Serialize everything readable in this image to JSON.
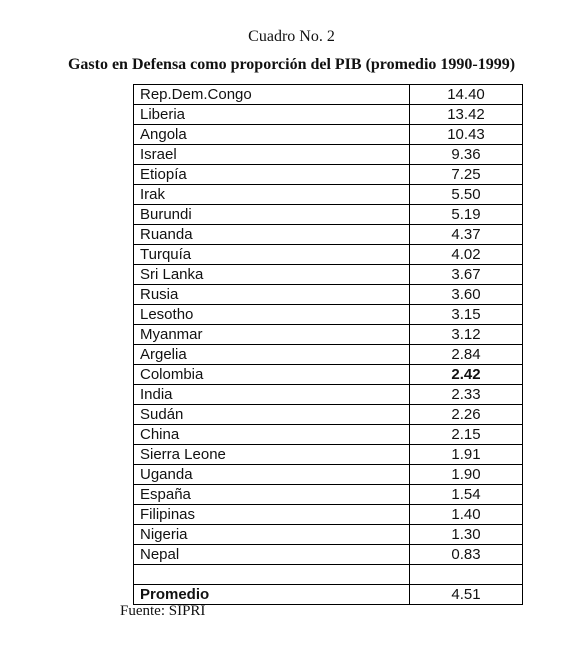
{
  "header": {
    "title": "Cuadro No. 2",
    "subtitle": "Gasto en Defensa como proporción del PIB (promedio 1990-1999)"
  },
  "table": {
    "rows": [
      [
        "Rep.Dem.Congo",
        "14.40"
      ],
      [
        "Liberia",
        "13.42"
      ],
      [
        "Angola",
        "10.43"
      ],
      [
        "Israel",
        "9.36"
      ],
      [
        "Etiopía",
        "7.25"
      ],
      [
        "Irak",
        "5.50"
      ],
      [
        "Burundi",
        "5.19"
      ],
      [
        "Ruanda",
        "4.37"
      ],
      [
        "Turquía",
        "4.02"
      ],
      [
        "Sri Lanka",
        "3.67"
      ],
      [
        "Rusia",
        "3.60"
      ],
      [
        "Lesotho",
        "3.15"
      ],
      [
        "Myanmar",
        "3.12"
      ],
      [
        "Argelia",
        "2.84"
      ],
      [
        "Colombia",
        "2.42"
      ],
      [
        "India",
        "2.33"
      ],
      [
        "Sudán",
        "2.26"
      ],
      [
        "China",
        "2.15"
      ],
      [
        "Sierra Leone",
        "1.91"
      ],
      [
        "Uganda",
        "1.90"
      ],
      [
        "España",
        "1.54"
      ],
      [
        "Filipinas",
        "1.40"
      ],
      [
        "Nigeria",
        "1.30"
      ],
      [
        "Nepal",
        "0.83"
      ]
    ],
    "footer": [
      "Promedio",
      "4.51"
    ]
  },
  "source": "Fuente: SIPRI"
}
